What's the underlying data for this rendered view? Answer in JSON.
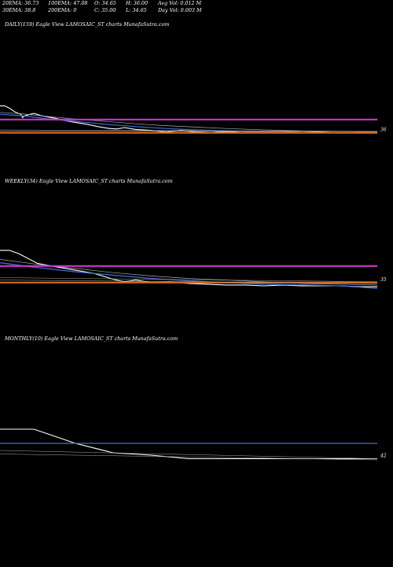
{
  "header": {
    "row1": [
      "20EMA: 36.73",
      "100EMA: 47.08",
      "O: 34.65",
      "H: 36.00",
      "Avg Vol: 0.012  M"
    ],
    "row2": [
      "30EMA: 38.8",
      "200EMA: 0",
      "C: 35.00",
      "L: 34.65",
      "Day Vol: 0.003  M"
    ]
  },
  "panels": [
    {
      "title": "DAILY(159) Eagle   View  LAMOSAIC_ST charts MunafaSutra.com",
      "tick_label": "36",
      "ylim": [
        0,
        1
      ],
      "line_colors": {
        "price": "#ffffff",
        "ema_fast": "#3f6fd6",
        "ema_slow": "#aaaaaa",
        "resistance": "#cc33cc",
        "support": "#d2691e",
        "reference": "#aaaaaa"
      }
    },
    {
      "title": "WEEKLY(34) Eagle   View  LAMOSAIC_ST charts MunafaSutra.com",
      "tick_label": "35",
      "ylim": [
        0,
        1
      ],
      "line_colors": {
        "price": "#ffffff",
        "ema_fast": "#3f6fd6",
        "ema_slow": "#aaaaaa",
        "resistance": "#cc33cc",
        "support": "#d2691e",
        "reference": "#aaaaaa"
      }
    },
    {
      "title": "MONTHLY(10) Eagle   View  LAMOSAIC_ST charts MunafaSutra.com",
      "tick_label": "42",
      "ylim": [
        0,
        1
      ],
      "line_colors": {
        "price": "#ffffff",
        "ema_fast": "#3f6fd6",
        "ema_slow": "#aaaaaa",
        "resistance": "#cc33cc",
        "support": "#d2691e",
        "reference": "#aaaaaa"
      }
    }
  ],
  "chart_data": [
    {
      "type": "line",
      "title": "DAILY(159) Eagle   View  LAMOSAIC_ST charts MunafaSutra.com",
      "ylim": [
        0,
        1
      ],
      "series": [
        {
          "role": "price",
          "x": [
            0,
            0.012,
            0.025,
            0.04,
            0.055,
            0.06,
            0.065,
            0.075,
            0.09,
            0.11,
            0.13,
            0.15,
            0.17,
            0.2,
            0.23,
            0.26,
            0.29,
            0.31,
            0.33,
            0.36,
            0.4,
            0.44,
            0.48,
            0.52,
            0.56,
            0.6,
            0.64,
            0.68,
            0.72,
            0.76,
            0.8,
            0.84,
            0.88,
            0.92,
            0.96,
            1.0
          ],
          "y": [
            0.76,
            0.76,
            0.71,
            0.63,
            0.58,
            0.51,
            0.55,
            0.57,
            0.6,
            0.55,
            0.52,
            0.49,
            0.45,
            0.41,
            0.37,
            0.32,
            0.28,
            0.27,
            0.3,
            0.26,
            0.24,
            0.21,
            0.24,
            0.21,
            0.2,
            0.22,
            0.2,
            0.21,
            0.2,
            0.21,
            0.2,
            0.21,
            0.2,
            0.2,
            0.2,
            0.2
          ]
        },
        {
          "role": "ema_fast",
          "x": [
            0,
            0.06,
            0.12,
            0.2,
            0.28,
            0.36,
            0.44,
            0.52,
            0.6,
            0.7,
            0.8,
            0.9,
            1.0
          ],
          "y": [
            0.58,
            0.55,
            0.49,
            0.43,
            0.37,
            0.32,
            0.28,
            0.25,
            0.23,
            0.21,
            0.2,
            0.2,
            0.19
          ]
        },
        {
          "role": "ema_slow",
          "x": [
            0,
            0.06,
            0.12,
            0.2,
            0.28,
            0.36,
            0.44,
            0.52,
            0.6,
            0.7,
            0.8,
            0.9,
            1.0
          ],
          "y": [
            0.62,
            0.59,
            0.54,
            0.48,
            0.43,
            0.38,
            0.34,
            0.31,
            0.28,
            0.25,
            0.23,
            0.22,
            0.21
          ]
        },
        {
          "role": "resistance",
          "x": [
            0,
            1
          ],
          "y": [
            0.47,
            0.47
          ]
        },
        {
          "role": "support",
          "x": [
            0,
            1
          ],
          "y": [
            0.19,
            0.19
          ]
        },
        {
          "role": "reference",
          "x": [
            0,
            1
          ],
          "y": [
            0.23,
            0.22
          ]
        },
        {
          "role": "reference",
          "x": [
            0,
            1
          ],
          "y": [
            0.25,
            0.22
          ]
        }
      ]
    },
    {
      "type": "line",
      "title": "WEEKLY(34) Eagle   View  LAMOSAIC_ST charts MunafaSutra.com",
      "ylim": [
        0,
        1
      ],
      "series": [
        {
          "role": "price",
          "x": [
            0,
            0.025,
            0.05,
            0.075,
            0.1,
            0.15,
            0.2,
            0.25,
            0.3,
            0.33,
            0.36,
            0.4,
            0.45,
            0.5,
            0.55,
            0.6,
            0.65,
            0.7,
            0.75,
            0.8,
            0.85,
            0.9,
            0.95,
            1.0
          ],
          "y": [
            0.83,
            0.83,
            0.79,
            0.73,
            0.67,
            0.63,
            0.59,
            0.55,
            0.48,
            0.45,
            0.47,
            0.44,
            0.45,
            0.43,
            0.42,
            0.41,
            0.41,
            0.4,
            0.41,
            0.4,
            0.4,
            0.4,
            0.39,
            0.39
          ]
        },
        {
          "role": "ema_fast",
          "x": [
            0,
            0.1,
            0.2,
            0.3,
            0.4,
            0.5,
            0.6,
            0.7,
            0.8,
            0.9,
            1.0
          ],
          "y": [
            0.68,
            0.62,
            0.57,
            0.53,
            0.49,
            0.46,
            0.44,
            0.42,
            0.41,
            0.4,
            0.37
          ]
        },
        {
          "role": "ema_slow",
          "x": [
            0,
            0.1,
            0.2,
            0.3,
            0.4,
            0.5,
            0.6,
            0.7,
            0.8,
            0.9,
            1.0
          ],
          "y": [
            0.72,
            0.66,
            0.61,
            0.56,
            0.52,
            0.49,
            0.47,
            0.45,
            0.43,
            0.42,
            0.41
          ]
        },
        {
          "role": "resistance",
          "x": [
            0,
            1
          ],
          "y": [
            0.64,
            0.64
          ]
        },
        {
          "role": "support",
          "x": [
            0,
            1
          ],
          "y": [
            0.44,
            0.44
          ]
        },
        {
          "role": "reference",
          "x": [
            0,
            1
          ],
          "y": [
            0.47,
            0.43
          ]
        },
        {
          "role": "reference",
          "x": [
            0,
            1
          ],
          "y": [
            0.5,
            0.45
          ]
        }
      ]
    },
    {
      "type": "line",
      "title": "MONTHLY(10) Eagle   View  LAMOSAIC_ST charts MunafaSutra.com",
      "ylim": [
        0,
        1
      ],
      "series": [
        {
          "role": "price",
          "x": [
            0,
            0.09,
            0.2,
            0.3,
            0.4,
            0.5,
            0.6,
            0.7,
            0.8,
            0.9,
            1.0
          ],
          "y": [
            0.5,
            0.5,
            0.38,
            0.3,
            0.28,
            0.25,
            0.25,
            0.25,
            0.25,
            0.25,
            0.25
          ]
        },
        {
          "role": "ema_fast",
          "x": [
            0,
            1
          ],
          "y": [
            0.38,
            0.38
          ]
        },
        {
          "role": "reference",
          "x": [
            0,
            1
          ],
          "y": [
            0.32,
            0.25
          ]
        },
        {
          "role": "reference",
          "x": [
            0,
            1
          ],
          "y": [
            0.29,
            0.24
          ]
        }
      ]
    }
  ]
}
